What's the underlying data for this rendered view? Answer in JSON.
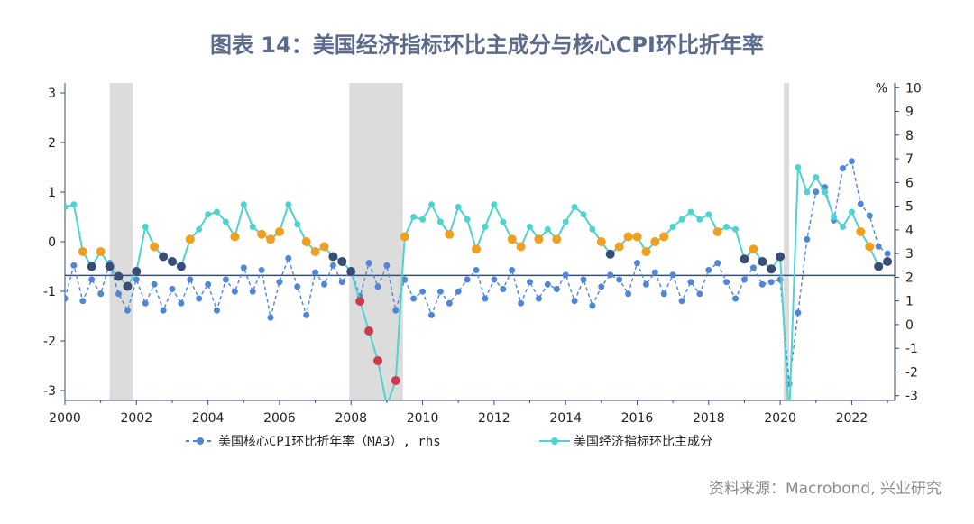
{
  "title": "图表 14：美国经济指标环比主成分与核心CPI环比折年率",
  "source": "资料来源：Macrobond, 兴业研究",
  "chart_data": {
    "type": "line",
    "x_range": [
      2000,
      2023.2
    ],
    "x_ticks": [
      "2000",
      "2002",
      "2004",
      "2006",
      "2008",
      "2010",
      "2012",
      "2014",
      "2016",
      "2018",
      "2020",
      "2022"
    ],
    "y_left": {
      "range": [
        -3.2,
        3.2
      ],
      "ticks": [
        "3",
        "2",
        "1",
        "0",
        "-1",
        "-2",
        "-3"
      ]
    },
    "y_right": {
      "range": [
        -3.2,
        10.2
      ],
      "unit": "%",
      "ticks": [
        "10",
        "9",
        "8",
        "7",
        "6",
        "5",
        "4",
        "3",
        "2",
        "1",
        "0",
        "-1",
        "-2",
        "-3"
      ]
    },
    "recessions": [
      [
        2001.25,
        2001.9
      ],
      [
        2007.95,
        2009.45
      ],
      [
        2020.1,
        2020.25
      ]
    ],
    "reference_line": {
      "axis": "left",
      "value": -0.68,
      "color": "#3a4d75"
    },
    "series": [
      {
        "name": "美国核心CPI环比折年率（MA3）, rhs",
        "axis": "right",
        "color": "#4f86d6",
        "style": "dashed-dots",
        "x": [
          2000.0,
          2000.25,
          2000.5,
          2000.75,
          2001.0,
          2001.25,
          2001.5,
          2001.75,
          2002.0,
          2002.25,
          2002.5,
          2002.75,
          2003.0,
          2003.25,
          2003.5,
          2003.75,
          2004.0,
          2004.25,
          2004.5,
          2004.75,
          2005.0,
          2005.25,
          2005.5,
          2005.75,
          2006.0,
          2006.25,
          2006.5,
          2006.75,
          2007.0,
          2007.25,
          2007.5,
          2007.75,
          2008.0,
          2008.25,
          2008.5,
          2008.75,
          2009.0,
          2009.25,
          2009.5,
          2009.75,
          2010.0,
          2010.25,
          2010.5,
          2010.75,
          2011.0,
          2011.25,
          2011.5,
          2011.75,
          2012.0,
          2012.25,
          2012.5,
          2012.75,
          2013.0,
          2013.25,
          2013.5,
          2013.75,
          2014.0,
          2014.25,
          2014.5,
          2014.75,
          2015.0,
          2015.25,
          2015.5,
          2015.75,
          2016.0,
          2016.25,
          2016.5,
          2016.75,
          2017.0,
          2017.25,
          2017.5,
          2017.75,
          2018.0,
          2018.25,
          2018.5,
          2018.75,
          2019.0,
          2019.25,
          2019.5,
          2019.75,
          2020.0,
          2020.25,
          2020.5,
          2020.75,
          2021.0,
          2021.25,
          2021.5,
          2021.75,
          2022.0,
          2022.25,
          2022.5,
          2022.75,
          2023.0
        ],
        "values": [
          1.1,
          2.5,
          1.0,
          1.9,
          1.3,
          2.6,
          1.3,
          0.6,
          1.9,
          0.9,
          1.7,
          0.6,
          1.5,
          0.9,
          1.9,
          1.1,
          1.7,
          0.6,
          1.9,
          1.4,
          2.4,
          1.4,
          2.3,
          0.3,
          1.8,
          2.8,
          1.6,
          0.4,
          2.2,
          1.7,
          2.5,
          1.8,
          2.3,
          1.2,
          2.6,
          1.6,
          2.5,
          0.6,
          1.9,
          1.1,
          1.4,
          0.4,
          1.4,
          0.9,
          1.4,
          1.9,
          2.3,
          1.1,
          1.9,
          1.5,
          2.3,
          0.9,
          1.8,
          1.1,
          1.7,
          1.5,
          2.1,
          1.0,
          1.9,
          0.8,
          1.6,
          2.1,
          1.9,
          1.3,
          2.6,
          1.7,
          2.2,
          1.3,
          2.1,
          1.0,
          1.8,
          1.3,
          2.3,
          2.6,
          1.8,
          1.1,
          1.9,
          2.4,
          1.7,
          1.8,
          1.9,
          -2.5,
          0.5,
          3.6,
          5.6,
          5.8,
          4.4,
          6.6,
          6.9,
          5.1,
          4.6,
          3.3,
          3.0
        ]
      },
      {
        "name": "美国经济指标环比主成分",
        "axis": "left",
        "color": "#4fd3cf",
        "style": "solid-dots",
        "x": [
          2000.0,
          2000.25,
          2000.5,
          2000.75,
          2001.0,
          2001.25,
          2001.5,
          2001.75,
          2002.0,
          2002.25,
          2002.5,
          2002.75,
          2003.0,
          2003.25,
          2003.5,
          2003.75,
          2004.0,
          2004.25,
          2004.5,
          2004.75,
          2005.0,
          2005.25,
          2005.5,
          2005.75,
          2006.0,
          2006.25,
          2006.5,
          2006.75,
          2007.0,
          2007.25,
          2007.5,
          2007.75,
          2008.0,
          2008.25,
          2008.5,
          2008.75,
          2009.0,
          2009.25,
          2009.5,
          2009.75,
          2010.0,
          2010.25,
          2010.5,
          2010.75,
          2011.0,
          2011.25,
          2011.5,
          2011.75,
          2012.0,
          2012.25,
          2012.5,
          2012.75,
          2013.0,
          2013.25,
          2013.5,
          2013.75,
          2014.0,
          2014.25,
          2014.5,
          2014.75,
          2015.0,
          2015.25,
          2015.5,
          2015.75,
          2016.0,
          2016.25,
          2016.5,
          2016.75,
          2017.0,
          2017.25,
          2017.5,
          2017.75,
          2018.0,
          2018.25,
          2018.5,
          2018.75,
          2019.0,
          2019.25,
          2019.5,
          2019.75,
          2020.0,
          2020.25,
          2020.5,
          2020.75,
          2021.0,
          2021.25,
          2021.5,
          2021.75,
          2022.0,
          2022.25,
          2022.5,
          2022.75,
          2023.0
        ],
        "values": [
          0.7,
          0.75,
          -0.2,
          -0.5,
          -0.2,
          -0.5,
          -0.7,
          -0.9,
          -0.6,
          0.3,
          -0.1,
          -0.3,
          -0.4,
          -0.5,
          0.05,
          0.25,
          0.55,
          0.6,
          0.4,
          0.1,
          0.75,
          0.3,
          0.15,
          0.05,
          0.2,
          0.75,
          0.35,
          0.0,
          -0.2,
          -0.1,
          -0.3,
          -0.4,
          -0.6,
          -1.2,
          -1.8,
          -2.4,
          -3.3,
          -2.8,
          0.1,
          0.5,
          0.45,
          0.75,
          0.4,
          0.15,
          0.7,
          0.45,
          -0.15,
          0.3,
          0.75,
          0.4,
          0.05,
          -0.1,
          0.3,
          0.05,
          0.25,
          0.05,
          0.4,
          0.7,
          0.55,
          0.25,
          0.0,
          -0.25,
          -0.1,
          0.1,
          0.1,
          -0.2,
          0.0,
          0.1,
          0.3,
          0.45,
          0.6,
          0.45,
          0.55,
          0.2,
          0.3,
          0.25,
          -0.35,
          -0.15,
          -0.4,
          -0.55,
          -0.3,
          -3.6,
          1.5,
          1.0,
          1.3,
          1.0,
          0.5,
          0.3,
          0.6,
          0.2,
          -0.1,
          -0.5,
          -0.4
        ]
      }
    ]
  },
  "legend": {
    "cpi_label": "美国核心CPI环比折年率（MA3）, rhs",
    "pc_label": "美国经济指标环比主成分"
  },
  "colors": {
    "axis": "#3a4d75",
    "recession": "#dcdcdc",
    "dot_dark": "#3a4d75",
    "overlay_red": "#cc3a4f",
    "overlay_orange": "#f0a020"
  }
}
